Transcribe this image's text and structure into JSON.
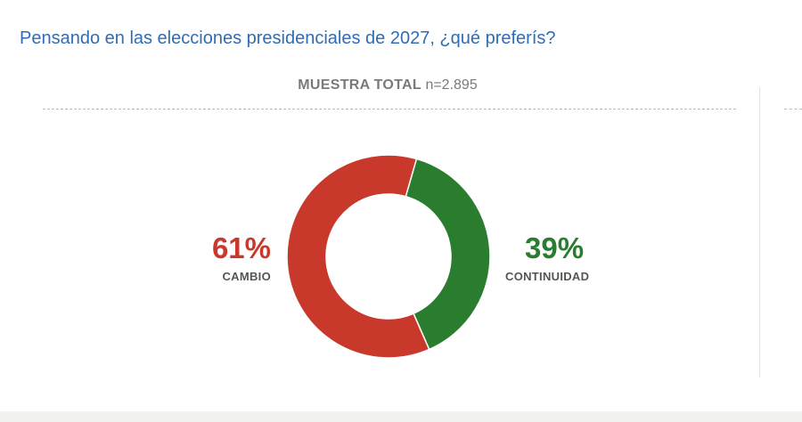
{
  "question": "Pensando en las elecciones presidenciales de 2027, ¿qué preferís?",
  "sample": {
    "label": "MUESTRA TOTAL",
    "n_text": "n=2.895"
  },
  "chart_data": {
    "type": "pie",
    "categories": [
      "CAMBIO",
      "CONTINUIDAD"
    ],
    "values": [
      61,
      39
    ],
    "value_labels": [
      "61%",
      "39%"
    ],
    "colors": [
      "#c8392b",
      "#2a7d2e"
    ],
    "title": "",
    "legend": "none"
  }
}
